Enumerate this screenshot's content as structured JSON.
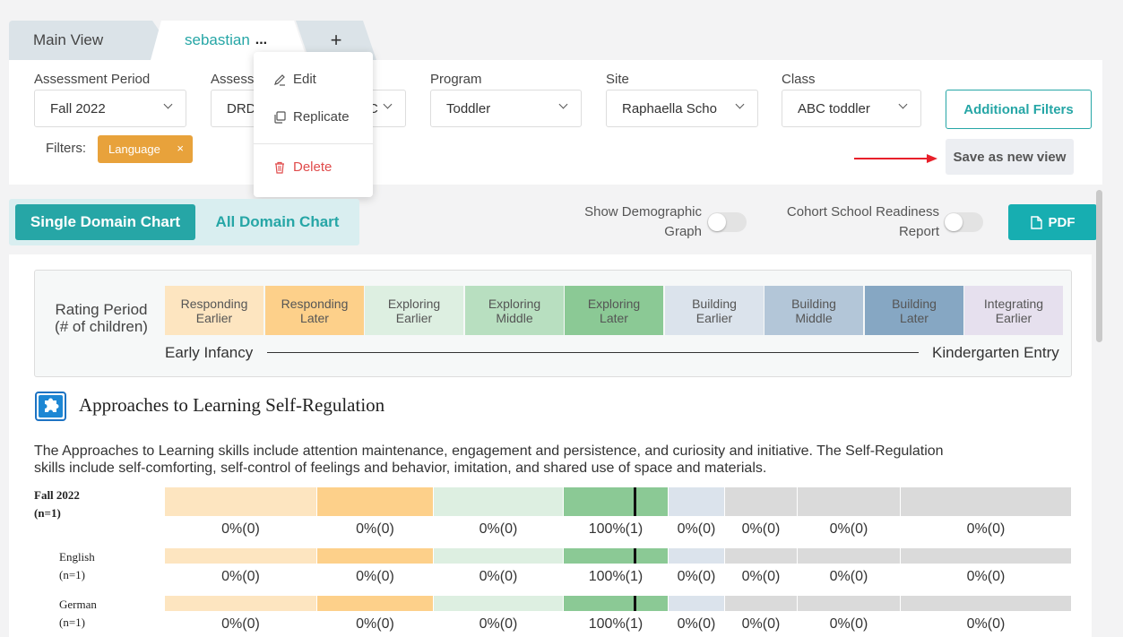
{
  "tabs": {
    "main": "Main View",
    "current": "sebastian",
    "dots": "...",
    "add": "+"
  },
  "filters": {
    "assessment_period": {
      "label": "Assessment Period",
      "value": "Fall 2022"
    },
    "assessment": {
      "label": "Assess",
      "value": "DRD",
      "tail": "C"
    },
    "program": {
      "label": "Program",
      "value": "Toddler"
    },
    "site": {
      "label": "Site",
      "value": "Raphaella Scho"
    },
    "class": {
      "label": "Class",
      "value": "ABC toddler"
    },
    "additional_filters": "Additional Filters",
    "save_view": "Save as new view",
    "filters_label": "Filters:",
    "chip": "Language",
    "chip_close": "×"
  },
  "menu": {
    "edit": "Edit",
    "replicate": "Replicate",
    "delete": "Delete"
  },
  "toolbar": {
    "single": "Single Domain Chart",
    "all": "All Domain Chart",
    "demographic_1": "Show Demographic",
    "demographic_2": "Graph",
    "cohort_1": "Cohort School Readiness",
    "cohort_2": "Report",
    "pdf": "PDF"
  },
  "legend": {
    "label_1": "Rating Period",
    "label_2": "(# of children)",
    "cells": [
      {
        "l1": "Responding",
        "l2": "Earlier",
        "color": "#fde5c0"
      },
      {
        "l1": "Responding",
        "l2": "Later",
        "color": "#fdd08a"
      },
      {
        "l1": "Exploring",
        "l2": "Earlier",
        "color": "#ddefe1"
      },
      {
        "l1": "Exploring",
        "l2": "Middle",
        "color": "#b8dfc0"
      },
      {
        "l1": "Exploring",
        "l2": "Later",
        "color": "#8bc995"
      },
      {
        "l1": "Building",
        "l2": "Earlier",
        "color": "#dbe3ec"
      },
      {
        "l1": "Building",
        "l2": "Middle",
        "color": "#b3c6d8"
      },
      {
        "l1": "Building",
        "l2": "Later",
        "color": "#86a7c3"
      },
      {
        "l1": "Integrating",
        "l2": "Earlier",
        "color": "#e6e0ee"
      }
    ],
    "start": "Early Infancy",
    "end": "Kindergarten Entry"
  },
  "domain": {
    "title": "Approaches to Learning Self-Regulation",
    "desc_1": "The Approaches to Learning skills include attention maintenance, engagement and persistence, and curiosity and initiative. The Self-Regulation",
    "desc_2": "skills include self-comforting, self-control of feelings and behavior, imitation, and shared use of space and materials."
  },
  "rows": [
    {
      "name": "Fall 2022",
      "n": "(n=1)",
      "pcts": [
        "0%(0)",
        "0%(0)",
        "0%(0)",
        "100%(1)",
        "0%(0)",
        "0%(0)",
        "0%(0)",
        "0%(0)"
      ]
    },
    {
      "name": "English",
      "n": "(n=1)",
      "pcts": [
        "0%(0)",
        "0%(0)",
        "0%(0)",
        "100%(1)",
        "0%(0)",
        "0%(0)",
        "0%(0)",
        "0%(0)"
      ]
    },
    {
      "name": "German",
      "n": "(n=1)",
      "pcts": [
        "0%(0)",
        "0%(0)",
        "0%(0)",
        "100%(1)",
        "0%(0)",
        "0%(0)",
        "0%(0)",
        "0%(0)"
      ]
    }
  ],
  "segment_colors": [
    "#fde5c0",
    "#fdd08a",
    "#ddefe1",
    "#8bc995",
    "#dbe3ec",
    "#dadada",
    "#dadada",
    "#dadada"
  ],
  "annotation_color": "#e8202a"
}
